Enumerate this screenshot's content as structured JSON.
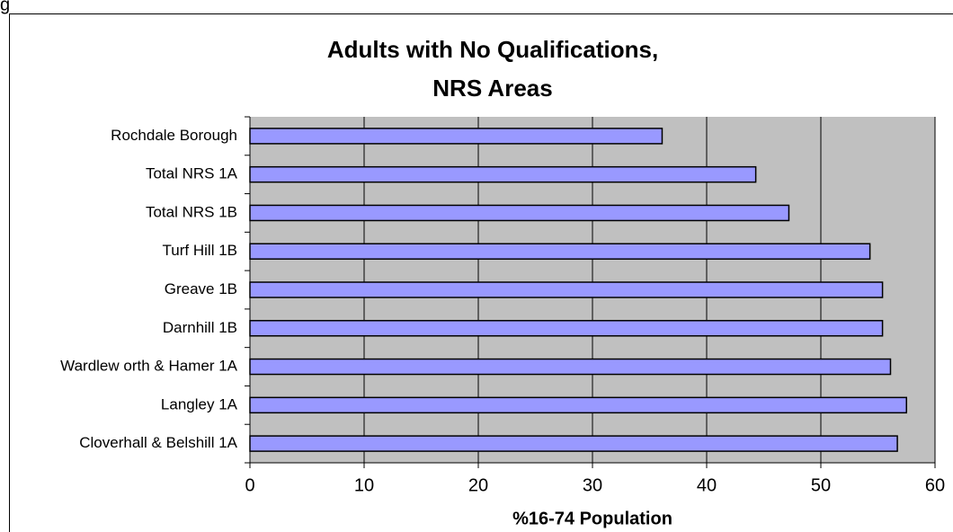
{
  "caption": "g",
  "chart_data": {
    "type": "barh",
    "title": [
      "Adults with No Qualifications,",
      "NRS Areas"
    ],
    "xlabel": "%16-74 Population",
    "categories": [
      "Rochdale Borough",
      "Total NRS 1A",
      "Total NRS 1B",
      "Turf Hill 1B",
      "Greave 1B",
      "Darnhill 1B",
      "Wardlew orth & Hamer 1A",
      "Langley 1A",
      "Cloverhall & Belshill 1A"
    ],
    "values": [
      36.1,
      44.3,
      47.2,
      54.3,
      55.4,
      55.4,
      56.1,
      57.5,
      56.7
    ],
    "color": "#9999ff",
    "xlim": [
      0,
      60
    ],
    "xticks": [
      0,
      10,
      20,
      30,
      40,
      50,
      60
    ],
    "grid": true
  }
}
